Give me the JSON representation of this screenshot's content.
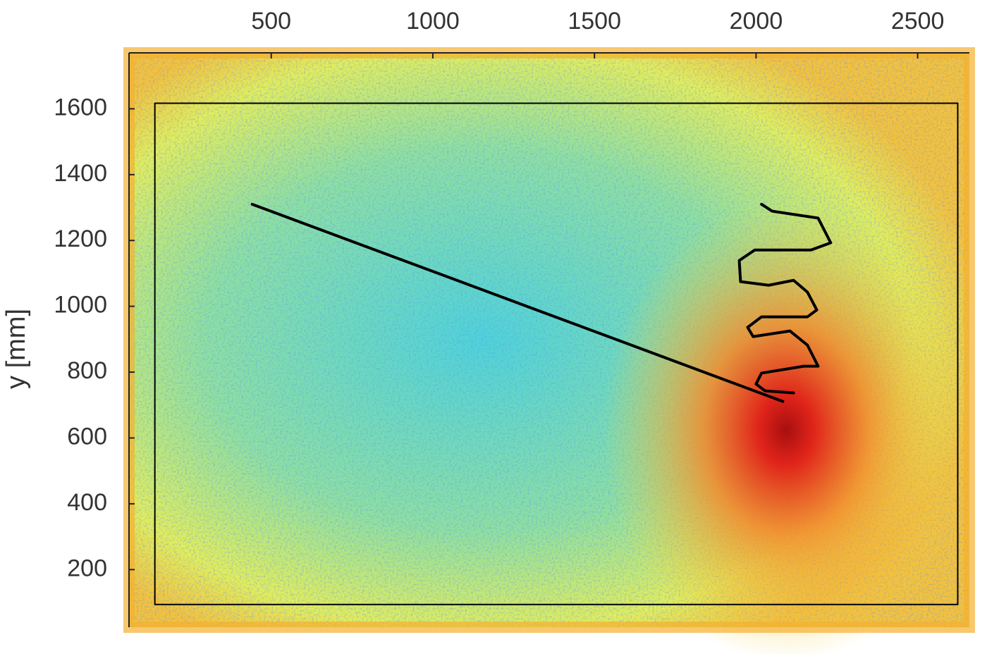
{
  "chart_data": {
    "type": "line",
    "y_label": "y [mm]",
    "xlim": [
      60,
      2660
    ],
    "ylim": [
      25,
      1770
    ],
    "xticks": [
      500,
      1000,
      1500,
      2000,
      2500
    ],
    "yticks": [
      200,
      400,
      600,
      800,
      1000,
      1200,
      1400,
      1600
    ],
    "x_axis_position": "top",
    "series": [
      {
        "color": "#000000",
        "x": [
          140,
          2624,
          2624,
          140,
          140
        ],
        "values": [
          94,
          94,
          1617,
          1617,
          94
        ]
      },
      {
        "color": "#000000",
        "x": [
          441,
          2083
        ],
        "values": [
          1310,
          711
        ]
      },
      {
        "color": "#000000",
        "x": [
          2017,
          2050,
          2192,
          2231,
          2170,
          1996,
          1948,
          1952,
          2039,
          2116,
          2159,
          2188,
          2159,
          2017,
          1974,
          1991,
          2105,
          2159,
          2192,
          2148,
          2017,
          2000,
          2028,
          2116
        ],
        "values": [
          1310,
          1289,
          1268,
          1193,
          1171,
          1171,
          1139,
          1075,
          1064,
          1079,
          1043,
          989,
          968,
          968,
          936,
          908,
          925,
          882,
          818,
          818,
          797,
          764,
          743,
          737
        ]
      }
    ]
  }
}
